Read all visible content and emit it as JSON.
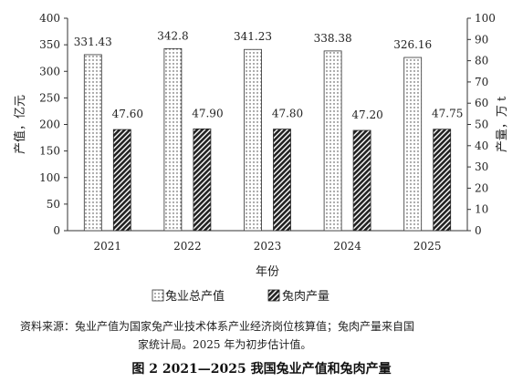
{
  "chart_data": {
    "type": "bar",
    "categories": [
      "2021",
      "2022",
      "2023",
      "2024",
      "2025"
    ],
    "series": [
      {
        "name": "兔业总产值",
        "axis": "left",
        "pattern": "dots",
        "values": [
          331.43,
          342.8,
          341.23,
          338.38,
          326.16
        ],
        "labels": [
          "331.43",
          "342.8",
          "341.23",
          "338.38",
          "326.16"
        ]
      },
      {
        "name": "兔肉产量",
        "axis": "right",
        "pattern": "hatch",
        "values": [
          47.6,
          47.9,
          47.8,
          47.2,
          47.75
        ],
        "labels": [
          "47.60",
          "47.90",
          "47.80",
          "47.20",
          "47.75"
        ]
      }
    ],
    "xlabel": "年份",
    "ylabel_left": "产值，亿元",
    "ylabel_right": "产量，万 t",
    "ylim_left": [
      0,
      400
    ],
    "ylim_right": [
      0,
      100
    ],
    "yticks_left": [
      "0",
      "50",
      "100",
      "150",
      "200",
      "250",
      "300",
      "350",
      "400"
    ],
    "yticks_right": [
      "0",
      "10",
      "20",
      "30",
      "40",
      "50",
      "60",
      "70",
      "80",
      "90",
      "100"
    ],
    "grid": false,
    "legend_position": "bottom"
  },
  "source_prefix": "资料来源：",
  "source_line1": "兔业产值为国家兔产业技术体系产业经济岗位核算值；兔肉产量来自国",
  "source_line2": "家统计局。2025 年为初步估计值。",
  "caption": "图 2   2021—2025 我国兔业产值和兔肉产量"
}
